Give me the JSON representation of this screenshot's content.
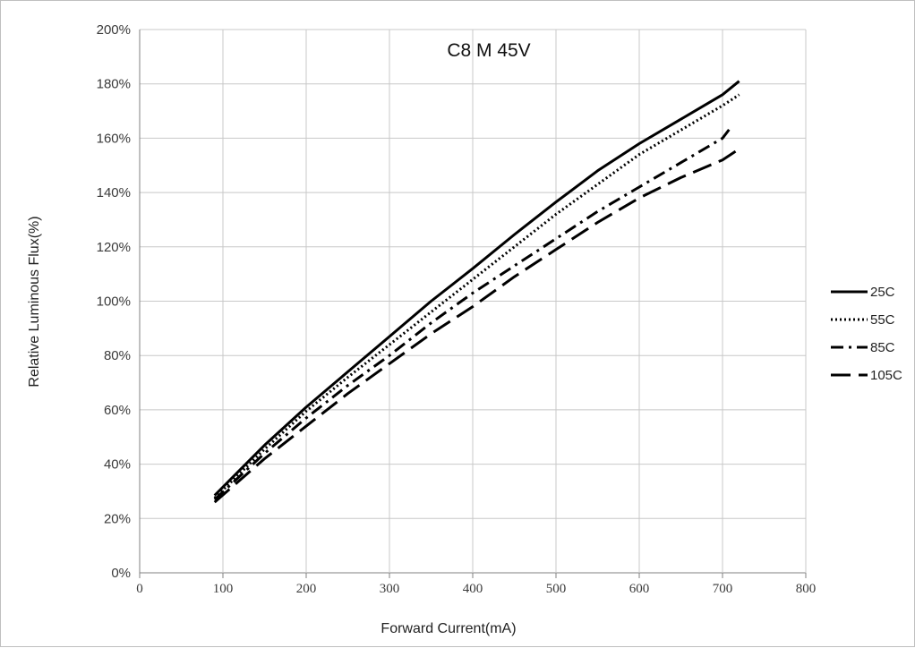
{
  "chart_data": {
    "type": "line",
    "title": "C8 M 45V",
    "xlabel": "Forward Current(mA)",
    "ylabel": "Relative Luminous Flux(%)",
    "xlim": [
      0,
      800
    ],
    "ylim": [
      0,
      200
    ],
    "xticks": [
      0,
      100,
      200,
      300,
      400,
      500,
      600,
      700,
      800
    ],
    "yticks": [
      0,
      20,
      40,
      60,
      80,
      100,
      120,
      140,
      160,
      180,
      200
    ],
    "xtick_labels": [
      "0",
      "100",
      "200",
      "300",
      "400",
      "500",
      "600",
      "700",
      "800"
    ],
    "ytick_labels": [
      "0%",
      "20%",
      "40%",
      "60%",
      "80%",
      "100%",
      "120%",
      "140%",
      "160%",
      "180%",
      "200%"
    ],
    "grid": true,
    "legend_position": "right",
    "colors": {
      "series": "#000000",
      "grid": "#c8c8c8",
      "axis": "#808080"
    },
    "series": [
      {
        "name": "25C",
        "style": "solid",
        "x": [
          90,
          150,
          200,
          250,
          300,
          350,
          400,
          450,
          500,
          550,
          600,
          650,
          700,
          720
        ],
        "y": [
          28.5,
          47,
          61,
          74,
          87,
          100,
          112,
          124.5,
          136.5,
          148,
          158,
          167,
          176,
          181
        ]
      },
      {
        "name": "55C",
        "style": "dotted",
        "x": [
          90,
          150,
          200,
          250,
          300,
          350,
          400,
          450,
          500,
          550,
          600,
          650,
          700,
          720
        ],
        "y": [
          27.5,
          45.5,
          59.5,
          72,
          84,
          96,
          108,
          120,
          132,
          143,
          154,
          163,
          172,
          176
        ]
      },
      {
        "name": "85C",
        "style": "dashdot",
        "x": [
          90,
          150,
          200,
          250,
          300,
          350,
          400,
          450,
          500,
          550,
          600,
          650,
          700,
          710
        ],
        "y": [
          27,
          44,
          57,
          69,
          80,
          92,
          103,
          113,
          123,
          133,
          142,
          151,
          160,
          164
        ]
      },
      {
        "name": "105C",
        "style": "longdash",
        "x": [
          90,
          150,
          200,
          250,
          300,
          350,
          400,
          450,
          500,
          550,
          600,
          650,
          700,
          720
        ],
        "y": [
          26,
          42,
          54,
          66,
          77,
          88,
          98,
          109,
          119,
          129,
          138,
          145.5,
          152,
          156
        ]
      }
    ]
  }
}
